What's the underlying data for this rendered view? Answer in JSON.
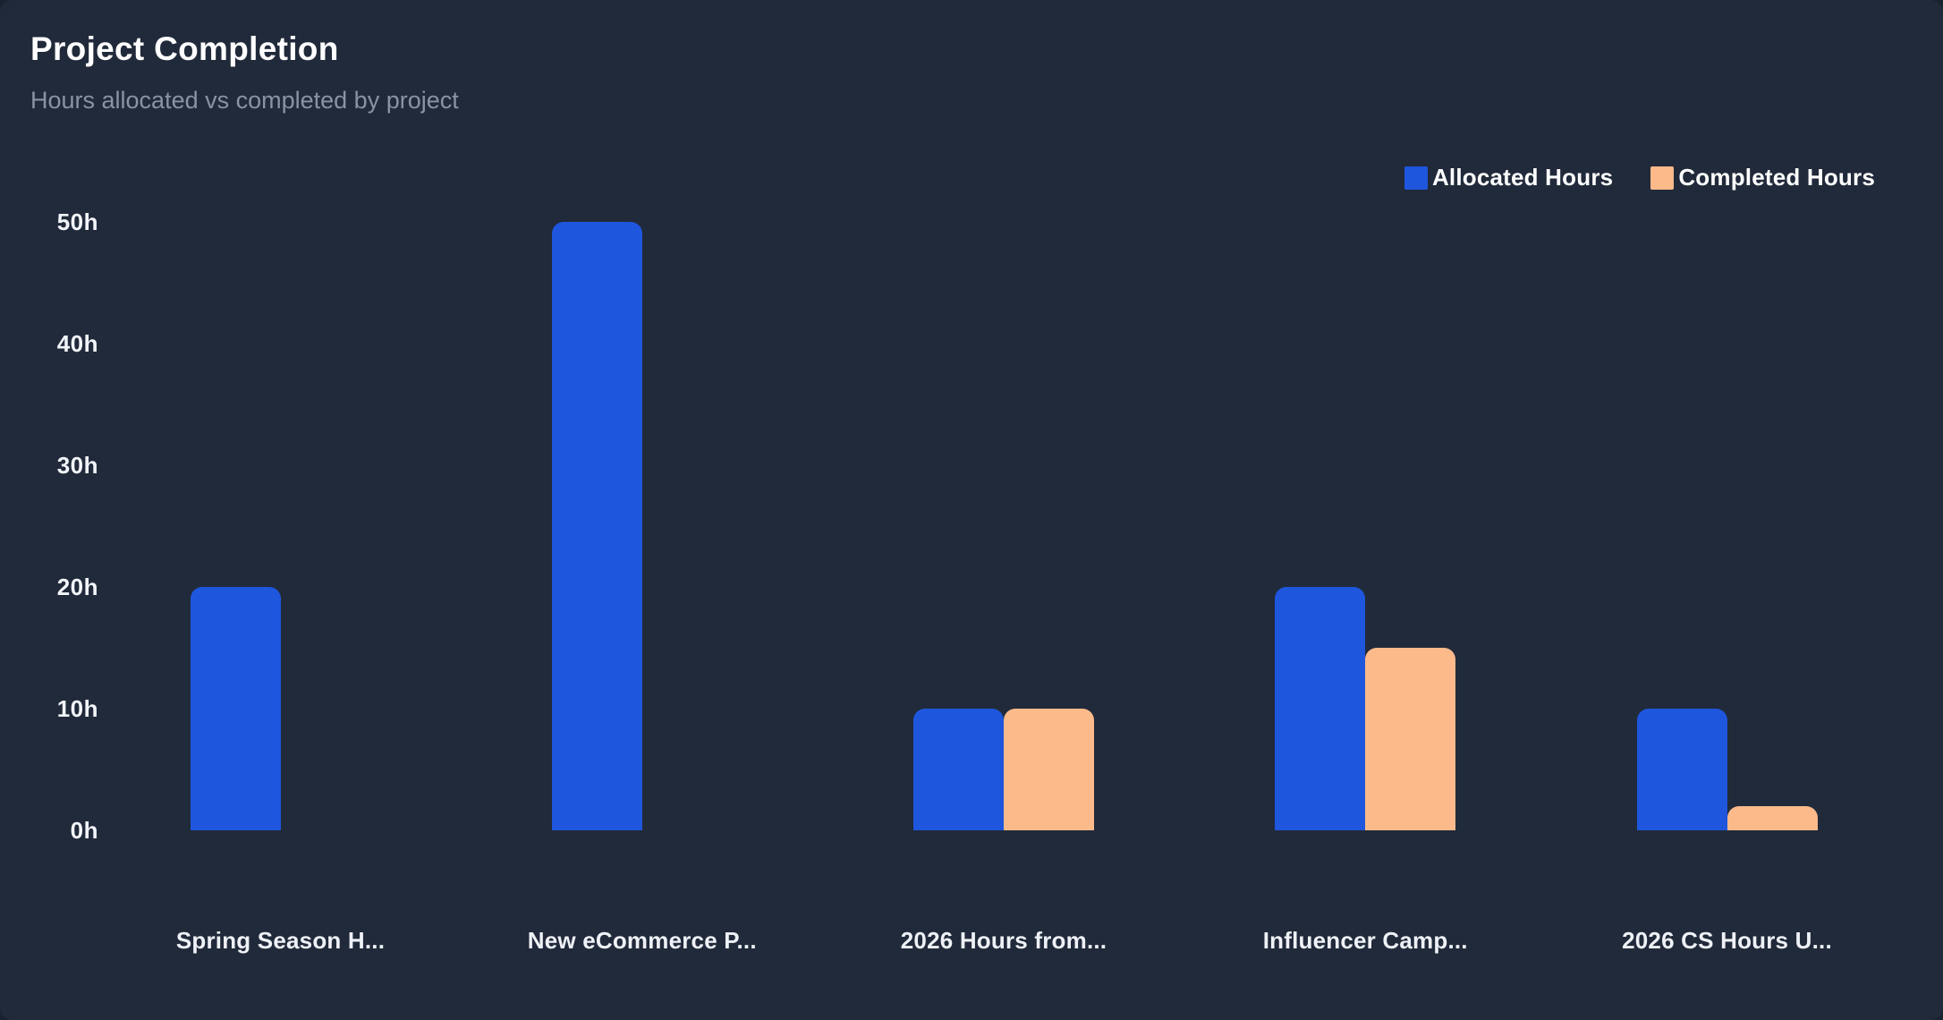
{
  "header": {
    "title": "Project Completion",
    "subtitle": "Hours allocated vs completed by project"
  },
  "colors": {
    "background": "#212a3a",
    "title": "#ffffff",
    "subtitle": "#8a93a3",
    "axis_label": "#f2f5f9",
    "allocated": "#1e56dd",
    "completed": "#fcba8b"
  },
  "chart_data": {
    "type": "bar",
    "title": "Project Completion",
    "subtitle": "Hours allocated vs completed by project",
    "categories": [
      "Spring Season H...",
      "New eCommerce P...",
      "2026 Hours from...",
      "Influencer Camp...",
      "2026 CS Hours U..."
    ],
    "series": [
      {
        "name": "Allocated Hours",
        "color": "#1e56dd",
        "values": [
          20,
          50,
          10,
          20,
          10
        ]
      },
      {
        "name": "Completed Hours",
        "color": "#fcba8b",
        "values": [
          0,
          0,
          10,
          15,
          2
        ]
      }
    ],
    "unit": "h",
    "ylim": [
      0,
      50
    ],
    "yticks": [
      0,
      10,
      20,
      30,
      40,
      50
    ],
    "ytick_labels": [
      "0h",
      "10h",
      "20h",
      "30h",
      "40h",
      "50h"
    ],
    "grid": false,
    "legend_position": "top-right"
  }
}
